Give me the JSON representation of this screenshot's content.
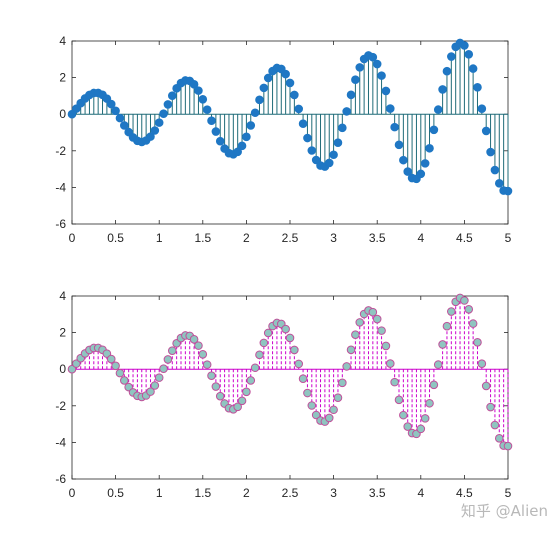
{
  "watermark": "知乎 @Alien",
  "chart_data": [
    {
      "type": "stem",
      "function": "y = (1 + 0.65x) * sin(6x)",
      "x_start": 0,
      "x_end": 5,
      "x_step": 0.05,
      "xlim": [
        0,
        5
      ],
      "ylim": [
        -6,
        4
      ],
      "xticks": [
        0,
        0.5,
        1,
        1.5,
        2,
        2.5,
        3,
        3.5,
        4,
        4.5,
        5
      ],
      "xtick_labels": [
        "0",
        "0.5",
        "1",
        "1.5",
        "2",
        "2.5",
        "3",
        "3.5",
        "4",
        "4.5",
        "5"
      ],
      "yticks": [
        -6,
        -4,
        -2,
        0,
        2,
        4
      ],
      "ytick_labels": [
        "-6",
        "-4",
        "-2",
        "0",
        "2",
        "4"
      ],
      "stem_color": "#1f6b78",
      "marker_fill": "#1f77c4",
      "marker_edge": "#1f77c4",
      "stem_style": "solid",
      "baseline_color": "#1f6b78"
    },
    {
      "type": "stem",
      "function": "y = (1 + 0.65x) * sin(6x)",
      "x_start": 0,
      "x_end": 5,
      "x_step": 0.05,
      "xlim": [
        0,
        5
      ],
      "ylim": [
        -6,
        4
      ],
      "xticks": [
        0,
        0.5,
        1,
        1.5,
        2,
        2.5,
        3,
        3.5,
        4,
        4.5,
        5
      ],
      "xtick_labels": [
        "0",
        "0.5",
        "1",
        "1.5",
        "2",
        "2.5",
        "3",
        "3.5",
        "4",
        "4.5",
        "5"
      ],
      "yticks": [
        -6,
        -4,
        -2,
        0,
        2,
        4
      ],
      "ytick_labels": [
        "-6",
        "-4",
        "-2",
        "0",
        "2",
        "4"
      ],
      "stem_color": "#cc00cc",
      "marker_fill": "#8fc5c0",
      "marker_edge": "#c0509a",
      "stem_style": "dashed",
      "baseline_color": "#cc00cc"
    }
  ]
}
